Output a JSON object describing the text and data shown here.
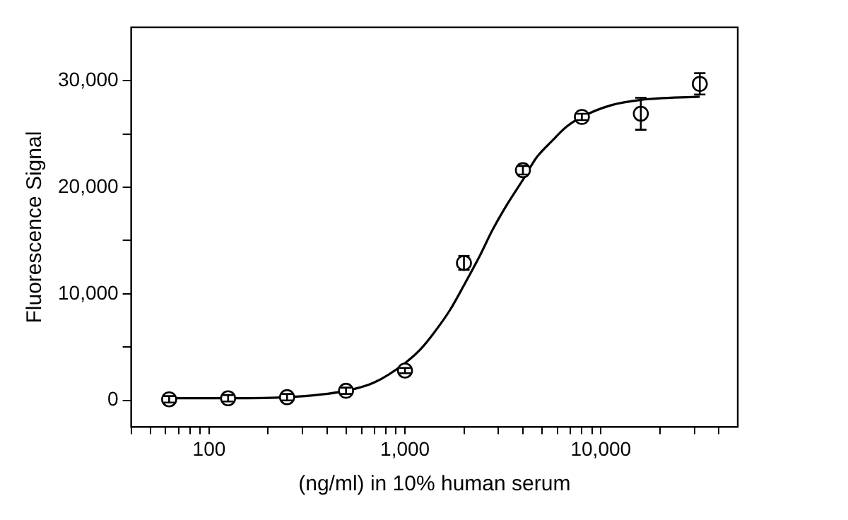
{
  "chart_data": {
    "type": "scatter",
    "xlabel": "(ng/ml) in 10% human serum",
    "ylabel": "Fluorescence Signal",
    "log": "x",
    "grid": false,
    "legend": false,
    "xlim": [
      40,
      50000
    ],
    "ylim": [
      -2500,
      35000
    ],
    "xticks": [
      {
        "value": 40,
        "label": null
      },
      {
        "value": 50,
        "label": null
      },
      {
        "value": 60,
        "label": null
      },
      {
        "value": 70,
        "label": null
      },
      {
        "value": 80,
        "label": null
      },
      {
        "value": 90,
        "label": null
      },
      {
        "value": 100,
        "label": "100"
      },
      {
        "value": 200,
        "label": null
      },
      {
        "value": 300,
        "label": null
      },
      {
        "value": 400,
        "label": null
      },
      {
        "value": 500,
        "label": null
      },
      {
        "value": 600,
        "label": null
      },
      {
        "value": 700,
        "label": null
      },
      {
        "value": 800,
        "label": null
      },
      {
        "value": 900,
        "label": null
      },
      {
        "value": 1000,
        "label": "1,000"
      },
      {
        "value": 2000,
        "label": null
      },
      {
        "value": 3000,
        "label": null
      },
      {
        "value": 4000,
        "label": null
      },
      {
        "value": 5000,
        "label": null
      },
      {
        "value": 6000,
        "label": null
      },
      {
        "value": 7000,
        "label": null
      },
      {
        "value": 8000,
        "label": null
      },
      {
        "value": 9000,
        "label": null
      },
      {
        "value": 10000,
        "label": "10,000"
      },
      {
        "value": 20000,
        "label": null
      },
      {
        "value": 30000,
        "label": null
      },
      {
        "value": 40000,
        "label": null
      }
    ],
    "yticks": [
      {
        "value": 0,
        "label": "0"
      },
      {
        "value": 5000,
        "label": null
      },
      {
        "value": 10000,
        "label": "10,000"
      },
      {
        "value": 15000,
        "label": null
      },
      {
        "value": 20000,
        "label": "20,000"
      },
      {
        "value": 25000,
        "label": null
      },
      {
        "value": 30000,
        "label": "30,000"
      }
    ],
    "series": [
      {
        "color": "#000000",
        "marker": "circle",
        "x": [
          62.5,
          125,
          250,
          500,
          1000,
          2000,
          4000,
          8000,
          16000,
          32000
        ],
        "values": [
          100,
          200,
          300,
          900,
          2800,
          12900,
          21600,
          26600,
          26900,
          29700
        ],
        "errors": [
          300,
          300,
          300,
          300,
          250,
          650,
          400,
          300,
          1500,
          1000
        ]
      },
      {
        "type": "line",
        "color": "#000000",
        "marker": "none",
        "line_style": "solid",
        "x": [
          62.5,
          125,
          250,
          500,
          700,
          1000,
          1200,
          1400,
          1700,
          2000,
          2400,
          2800,
          3300,
          4000,
          4700,
          5600,
          6700,
          8000,
          11300,
          16000,
          32000
        ],
        "values": [
          200,
          200,
          300,
          900,
          1700,
          3500,
          4800,
          6300,
          8500,
          10800,
          13500,
          16000,
          18300,
          20700,
          22800,
          24300,
          25700,
          26600,
          27700,
          28200,
          28500
        ]
      }
    ]
  }
}
